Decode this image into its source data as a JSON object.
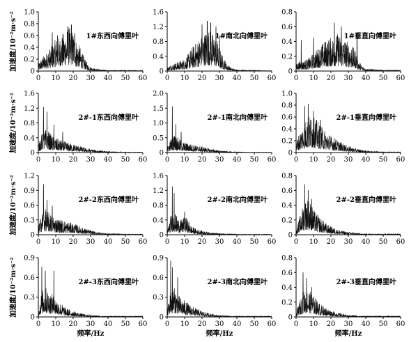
{
  "chart_data": [
    {
      "type": "area",
      "title": "1#东西向傅里叶",
      "xlim": [
        0,
        60
      ],
      "ylim": [
        0,
        1.0
      ],
      "xticks": [
        "0",
        "10",
        "20",
        "30",
        "40",
        "50",
        "60"
      ],
      "yticks": [
        "0",
        "0.2",
        "0.4",
        "0.6",
        "0.8",
        "1.0"
      ],
      "ylabel": "加速度/10⁻²m·s⁻²",
      "xlabel": "",
      "x": [
        0,
        2,
        4,
        6,
        8,
        10,
        12,
        14,
        16,
        18,
        20,
        22,
        24,
        26,
        28,
        30,
        32,
        34,
        36,
        38,
        40,
        45,
        50,
        55,
        60
      ],
      "y": [
        0.1,
        0.2,
        0.25,
        0.32,
        0.38,
        0.48,
        0.5,
        0.55,
        0.62,
        0.65,
        0.58,
        0.45,
        0.35,
        0.22,
        0.12,
        0.06,
        0.04,
        0.03,
        0.02,
        0.02,
        0.01,
        0.01,
        0.01,
        0.01,
        0.01
      ],
      "peaks": [
        [
          8,
          0.65
        ],
        [
          11,
          0.6
        ],
        [
          17,
          0.75
        ],
        [
          19,
          0.78
        ],
        [
          21,
          0.63
        ]
      ]
    },
    {
      "type": "area",
      "title": "1#南北向傅里叶",
      "xlim": [
        0,
        60
      ],
      "ylim": [
        0,
        1.6
      ],
      "xticks": [
        "0",
        "10",
        "20",
        "30",
        "40",
        "50",
        "60"
      ],
      "yticks": [
        "0",
        "0.4",
        "0.8",
        "1.2",
        "1.6"
      ],
      "ylabel": "",
      "xlabel": "",
      "x": [
        0,
        2,
        4,
        6,
        8,
        10,
        12,
        14,
        16,
        18,
        20,
        22,
        24,
        26,
        28,
        30,
        32,
        34,
        36,
        38,
        40,
        45,
        50,
        55,
        60
      ],
      "y": [
        0.08,
        0.15,
        0.18,
        0.22,
        0.25,
        0.3,
        0.4,
        0.55,
        0.65,
        0.75,
        0.85,
        0.95,
        1.0,
        0.9,
        0.8,
        0.55,
        0.35,
        0.2,
        0.1,
        0.06,
        0.03,
        0.02,
        0.02,
        0.01,
        0.01
      ],
      "peaks": [
        [
          20,
          1.25
        ],
        [
          23,
          1.35
        ],
        [
          25,
          1.3
        ],
        [
          28,
          1.2
        ],
        [
          30,
          0.95
        ]
      ]
    },
    {
      "type": "area",
      "title": "1#垂直向傅里叶",
      "xlim": [
        0,
        60
      ],
      "ylim": [
        0,
        0.8
      ],
      "xticks": [
        "0",
        "10",
        "20",
        "30",
        "40",
        "50",
        "60"
      ],
      "yticks": [
        "0",
        "0.2",
        "0.4",
        "0.6",
        "0.8"
      ],
      "ylabel": "",
      "xlabel": "",
      "x": [
        0,
        2,
        4,
        6,
        8,
        10,
        12,
        14,
        16,
        18,
        20,
        22,
        24,
        26,
        28,
        30,
        32,
        34,
        36,
        38,
        40,
        45,
        50,
        55,
        60
      ],
      "y": [
        0.08,
        0.12,
        0.12,
        0.14,
        0.16,
        0.22,
        0.26,
        0.3,
        0.35,
        0.38,
        0.4,
        0.42,
        0.45,
        0.4,
        0.38,
        0.35,
        0.3,
        0.25,
        0.12,
        0.06,
        0.03,
        0.02,
        0.01,
        0.01,
        0.01
      ],
      "peaks": [
        [
          3,
          0.42
        ],
        [
          10,
          0.45
        ],
        [
          22,
          0.65
        ],
        [
          26,
          0.6
        ],
        [
          35,
          0.52
        ]
      ]
    },
    {
      "type": "area",
      "title": "2#-1东西向傅里叶",
      "xlim": [
        0,
        60
      ],
      "ylim": [
        0,
        1.6
      ],
      "xticks": [
        "0",
        "10",
        "20",
        "30",
        "40",
        "50",
        "60"
      ],
      "yticks": [
        "0",
        "0.4",
        "0.8",
        "1.2",
        "1.6"
      ],
      "ylabel": "加速度/10⁻²m·s⁻²",
      "xlabel": "",
      "x": [
        0,
        2,
        4,
        6,
        8,
        10,
        12,
        14,
        16,
        18,
        20,
        22,
        24,
        26,
        28,
        30,
        32,
        34,
        36,
        38,
        40,
        45,
        50,
        55,
        60
      ],
      "y": [
        0.2,
        0.45,
        0.55,
        0.5,
        0.4,
        0.35,
        0.3,
        0.28,
        0.25,
        0.22,
        0.2,
        0.18,
        0.15,
        0.12,
        0.1,
        0.08,
        0.07,
        0.05,
        0.04,
        0.03,
        0.02,
        0.02,
        0.01,
        0.01,
        0.01
      ],
      "peaks": [
        [
          3,
          1.22
        ],
        [
          5,
          1.1
        ],
        [
          9,
          0.75
        ],
        [
          14,
          0.55
        ]
      ]
    },
    {
      "type": "area",
      "title": "2#-1南北向傅里叶",
      "xlim": [
        0,
        60
      ],
      "ylim": [
        0,
        2.0
      ],
      "xticks": [
        "0",
        "10",
        "20",
        "30",
        "40",
        "50",
        "60"
      ],
      "yticks": [
        "0",
        "0.5",
        "1.0",
        "1.5",
        "2.0"
      ],
      "ylabel": "",
      "xlabel": "",
      "x": [
        0,
        2,
        4,
        6,
        8,
        10,
        12,
        14,
        16,
        18,
        20,
        22,
        24,
        26,
        28,
        30,
        32,
        34,
        36,
        38,
        40,
        45,
        50,
        55,
        60
      ],
      "y": [
        0.15,
        0.4,
        0.55,
        0.45,
        0.35,
        0.3,
        0.28,
        0.25,
        0.22,
        0.2,
        0.18,
        0.15,
        0.12,
        0.1,
        0.08,
        0.06,
        0.05,
        0.04,
        0.03,
        0.02,
        0.02,
        0.01,
        0.01,
        0.01,
        0.01
      ],
      "peaks": [
        [
          3,
          1.55
        ],
        [
          5,
          0.95
        ],
        [
          8,
          0.7
        ]
      ]
    },
    {
      "type": "area",
      "title": "2#-1垂直向傅里叶",
      "xlim": [
        0,
        60
      ],
      "ylim": [
        0,
        1.0
      ],
      "xticks": [
        "0",
        "10",
        "20",
        "30",
        "40",
        "50",
        "60"
      ],
      "yticks": [
        "0",
        "0.2",
        "0.4",
        "0.6",
        "0.8",
        "1.0"
      ],
      "ylabel": "",
      "xlabel": "",
      "x": [
        0,
        2,
        4,
        6,
        8,
        10,
        12,
        14,
        16,
        18,
        20,
        22,
        24,
        26,
        28,
        30,
        32,
        34,
        36,
        38,
        40,
        45,
        50,
        55,
        60
      ],
      "y": [
        0.15,
        0.3,
        0.4,
        0.5,
        0.55,
        0.52,
        0.48,
        0.4,
        0.35,
        0.3,
        0.25,
        0.22,
        0.18,
        0.15,
        0.12,
        0.1,
        0.08,
        0.06,
        0.05,
        0.04,
        0.03,
        0.02,
        0.01,
        0.01,
        0.01
      ],
      "peaks": [
        [
          5,
          0.78
        ],
        [
          7,
          0.82
        ],
        [
          10,
          0.7
        ],
        [
          14,
          0.55
        ]
      ]
    },
    {
      "type": "area",
      "title": "2#-2东西向傅里叶",
      "xlim": [
        0,
        60
      ],
      "ylim": [
        0,
        1.2
      ],
      "xticks": [
        "0",
        "10",
        "20",
        "30",
        "40",
        "50",
        "60"
      ],
      "yticks": [
        "0",
        "0.3",
        "0.6",
        "0.9",
        "1.2"
      ],
      "ylabel": "加速度/10⁻²m·s⁻²",
      "xlabel": "",
      "x": [
        0,
        2,
        4,
        6,
        8,
        10,
        12,
        14,
        16,
        18,
        20,
        22,
        24,
        26,
        28,
        30,
        32,
        34,
        36,
        38,
        40,
        45,
        50,
        55,
        60
      ],
      "y": [
        0.15,
        0.4,
        0.45,
        0.4,
        0.35,
        0.3,
        0.28,
        0.26,
        0.24,
        0.22,
        0.2,
        0.18,
        0.15,
        0.12,
        0.1,
        0.08,
        0.06,
        0.05,
        0.04,
        0.03,
        0.02,
        0.02,
        0.01,
        0.01,
        0.01
      ],
      "peaks": [
        [
          3,
          1.02
        ],
        [
          5,
          0.7
        ],
        [
          8,
          0.58
        ]
      ]
    },
    {
      "type": "area",
      "title": "2#-2南北向傅里叶",
      "xlim": [
        0,
        60
      ],
      "ylim": [
        0,
        1.6
      ],
      "xticks": [
        "0",
        "10",
        "20",
        "30",
        "40",
        "50",
        "60"
      ],
      "yticks": [
        "0",
        "0.4",
        "0.8",
        "1.2",
        "1.6"
      ],
      "ylabel": "",
      "xlabel": "",
      "x": [
        0,
        2,
        4,
        6,
        8,
        10,
        12,
        14,
        16,
        18,
        20,
        22,
        24,
        26,
        28,
        30,
        32,
        34,
        36,
        38,
        40,
        45,
        50,
        55,
        60
      ],
      "y": [
        0.1,
        0.45,
        0.55,
        0.4,
        0.35,
        0.45,
        0.35,
        0.2,
        0.15,
        0.12,
        0.1,
        0.08,
        0.06,
        0.05,
        0.04,
        0.03,
        0.03,
        0.02,
        0.02,
        0.02,
        0.01,
        0.01,
        0.01,
        0.01,
        0.01
      ],
      "peaks": [
        [
          3,
          1.3
        ],
        [
          4,
          1.12
        ],
        [
          10,
          0.62
        ]
      ]
    },
    {
      "type": "area",
      "title": "2#-2垂直向傅里叶",
      "xlim": [
        0,
        60
      ],
      "ylim": [
        0,
        0.8
      ],
      "xticks": [
        "0",
        "10",
        "20",
        "30",
        "40",
        "50",
        "60"
      ],
      "yticks": [
        "0",
        "0.2",
        "0.4",
        "0.6",
        "0.8"
      ],
      "ylabel": "",
      "xlabel": "",
      "x": [
        0,
        2,
        4,
        6,
        8,
        10,
        12,
        14,
        16,
        18,
        20,
        22,
        24,
        26,
        28,
        30,
        32,
        34,
        36,
        38,
        40,
        45,
        50,
        55,
        60
      ],
      "y": [
        0.05,
        0.2,
        0.35,
        0.45,
        0.4,
        0.3,
        0.25,
        0.2,
        0.16,
        0.12,
        0.1,
        0.08,
        0.06,
        0.05,
        0.04,
        0.03,
        0.03,
        0.02,
        0.02,
        0.01,
        0.01,
        0.01,
        0.01,
        0.01,
        0.01
      ],
      "peaks": [
        [
          5,
          0.68
        ],
        [
          7,
          0.6
        ],
        [
          9,
          0.48
        ]
      ]
    },
    {
      "type": "area",
      "title": "2#-3东西向傅里叶",
      "xlim": [
        0,
        60
      ],
      "ylim": [
        0,
        0.9
      ],
      "xticks": [
        "0",
        "10",
        "20",
        "30",
        "40",
        "50",
        "60"
      ],
      "yticks": [
        "0",
        "0.3",
        "0.6",
        "0.9"
      ],
      "ylabel": "加速度/10⁻²m·s⁻²",
      "xlabel": "频率/Hz",
      "x": [
        0,
        2,
        4,
        6,
        8,
        10,
        12,
        14,
        16,
        18,
        20,
        22,
        24,
        26,
        28,
        30,
        32,
        34,
        36,
        38,
        40,
        45,
        50,
        55,
        60
      ],
      "y": [
        0.1,
        0.35,
        0.4,
        0.35,
        0.3,
        0.25,
        0.2,
        0.16,
        0.12,
        0.1,
        0.08,
        0.06,
        0.05,
        0.04,
        0.03,
        0.03,
        0.02,
        0.02,
        0.01,
        0.01,
        0.01,
        0.01,
        0.01,
        0.01,
        0.01
      ],
      "peaks": [
        [
          2,
          0.76
        ],
        [
          4,
          0.7
        ],
        [
          9,
          0.7
        ]
      ]
    },
    {
      "type": "area",
      "title": "2#-3南北向傅里叶",
      "xlim": [
        0,
        60
      ],
      "ylim": [
        0,
        0.9
      ],
      "xticks": [
        "0",
        "10",
        "20",
        "30",
        "40",
        "50",
        "60"
      ],
      "yticks": [
        "0",
        "0.3",
        "0.6",
        "0.9"
      ],
      "ylabel": "",
      "xlabel": "频率/Hz",
      "x": [
        0,
        2,
        4,
        6,
        8,
        10,
        12,
        14,
        16,
        18,
        20,
        22,
        24,
        26,
        28,
        30,
        32,
        34,
        36,
        38,
        40,
        45,
        50,
        55,
        60
      ],
      "y": [
        0.1,
        0.35,
        0.4,
        0.3,
        0.25,
        0.22,
        0.18,
        0.15,
        0.12,
        0.1,
        0.08,
        0.06,
        0.05,
        0.04,
        0.03,
        0.02,
        0.02,
        0.02,
        0.01,
        0.01,
        0.01,
        0.01,
        0.01,
        0.01,
        0.01
      ],
      "peaks": [
        [
          2,
          0.85
        ],
        [
          3,
          0.75
        ],
        [
          6,
          0.6
        ]
      ]
    },
    {
      "type": "area",
      "title": "2#-3垂直向傅里叶",
      "xlim": [
        0,
        60
      ],
      "ylim": [
        0,
        0.8
      ],
      "xticks": [
        "0",
        "10",
        "20",
        "30",
        "40",
        "50",
        "60"
      ],
      "yticks": [
        "0",
        "0.2",
        "0.4",
        "0.6",
        "0.8"
      ],
      "ylabel": "",
      "xlabel": "频率/Hz",
      "x": [
        0,
        2,
        4,
        6,
        8,
        10,
        12,
        14,
        16,
        18,
        20,
        22,
        24,
        26,
        28,
        30,
        32,
        34,
        36,
        38,
        40,
        45,
        50,
        55,
        60
      ],
      "y": [
        0.05,
        0.18,
        0.3,
        0.35,
        0.3,
        0.25,
        0.2,
        0.15,
        0.12,
        0.1,
        0.08,
        0.06,
        0.05,
        0.04,
        0.03,
        0.02,
        0.02,
        0.02,
        0.01,
        0.01,
        0.01,
        0.01,
        0.01,
        0.01,
        0.01
      ],
      "peaks": [
        [
          4,
          0.6
        ],
        [
          6,
          0.52
        ],
        [
          9,
          0.4
        ]
      ]
    }
  ]
}
